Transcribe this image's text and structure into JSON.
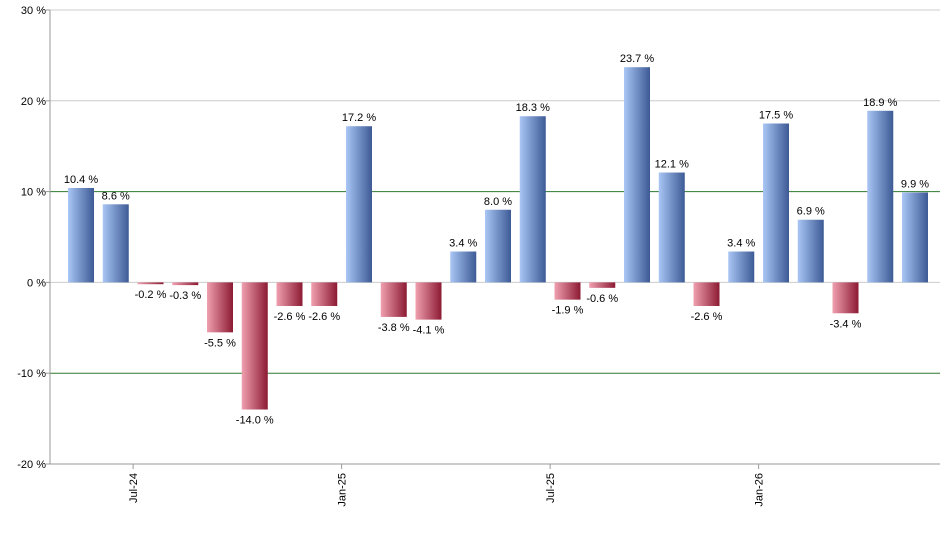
{
  "chart_data": {
    "type": "bar",
    "title": "",
    "xlabel": "",
    "ylabel": "",
    "ylim": [
      -20,
      30
    ],
    "y_ticks": [
      -20,
      -10,
      0,
      10,
      20,
      30
    ],
    "y_tick_labels": [
      "-20 %",
      "-10 %",
      "0 %",
      "10 %",
      "20 %",
      "30 %"
    ],
    "x_tick_labels": [
      {
        "label": "Jul-24",
        "after_index": 1
      },
      {
        "label": "Jan-25",
        "after_index": 7
      },
      {
        "label": "Jul-25",
        "after_index": 13
      },
      {
        "label": "Jan-26",
        "after_index": 19
      }
    ],
    "green_gridlines": [
      10,
      -10
    ],
    "values": [
      10.4,
      8.6,
      -0.2,
      -0.3,
      -5.5,
      -14.0,
      -2.6,
      -2.6,
      17.2,
      -3.8,
      -4.1,
      3.4,
      8.0,
      18.3,
      -1.9,
      -0.6,
      23.7,
      12.1,
      -2.6,
      3.4,
      17.5,
      6.9,
      -3.4,
      18.9,
      9.9
    ],
    "data_labels": [
      "10.4 %",
      "8.6 %",
      "-0.2 %",
      "-0.3 %",
      "-5.5 %",
      "-14.0 %",
      "-2.6 %",
      "-2.6 %",
      "17.2 %",
      "-3.8 %",
      "-4.1 %",
      "3.4 %",
      "8.0 %",
      "18.3 %",
      "-1.9 %",
      "-0.6 %",
      "23.7 %",
      "12.1 %",
      "-2.6 %",
      "3.4 %",
      "17.5 %",
      "6.9 %",
      "-3.4 %",
      "18.9 %",
      "9.9 %"
    ],
    "colors": {
      "positive_light": "#a9c6f5",
      "positive_dark": "#3d5a95",
      "negative_light": "#f0a0b0",
      "negative_dark": "#8c1a33",
      "gridline": "#cccccc",
      "green_gridline": "#2d7a2d",
      "axis": "#999999"
    },
    "grid": true
  }
}
